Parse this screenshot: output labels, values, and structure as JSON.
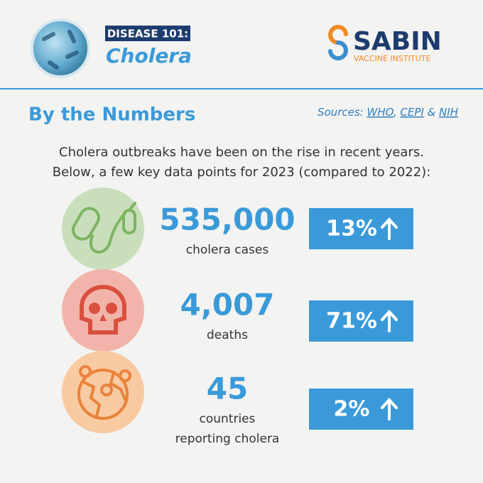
{
  "header": {
    "tag": "DISEASE 101:",
    "title": "Cholera",
    "brand": "SABIN",
    "brand_subtitle": "VACCINE INSTITUTE"
  },
  "section_title": "By the Numbers",
  "sources": {
    "label": "Sources:",
    "links": [
      "WHO",
      "CEPI",
      "NIH"
    ],
    "separators": [
      ",",
      "&"
    ]
  },
  "intro": [
    "Cholera outbreaks have been on the rise in recent years.",
    "Below, a few key data points for 2023 (compared to 2022):"
  ],
  "stats": [
    {
      "value": "535,000",
      "label": [
        "cholera cases"
      ],
      "change": "13%"
    },
    {
      "value": "4,007",
      "label": [
        "deaths"
      ],
      "change": "71%"
    },
    {
      "value": "45",
      "label": [
        "countries",
        "reporting cholera"
      ],
      "change": "2%"
    }
  ]
}
